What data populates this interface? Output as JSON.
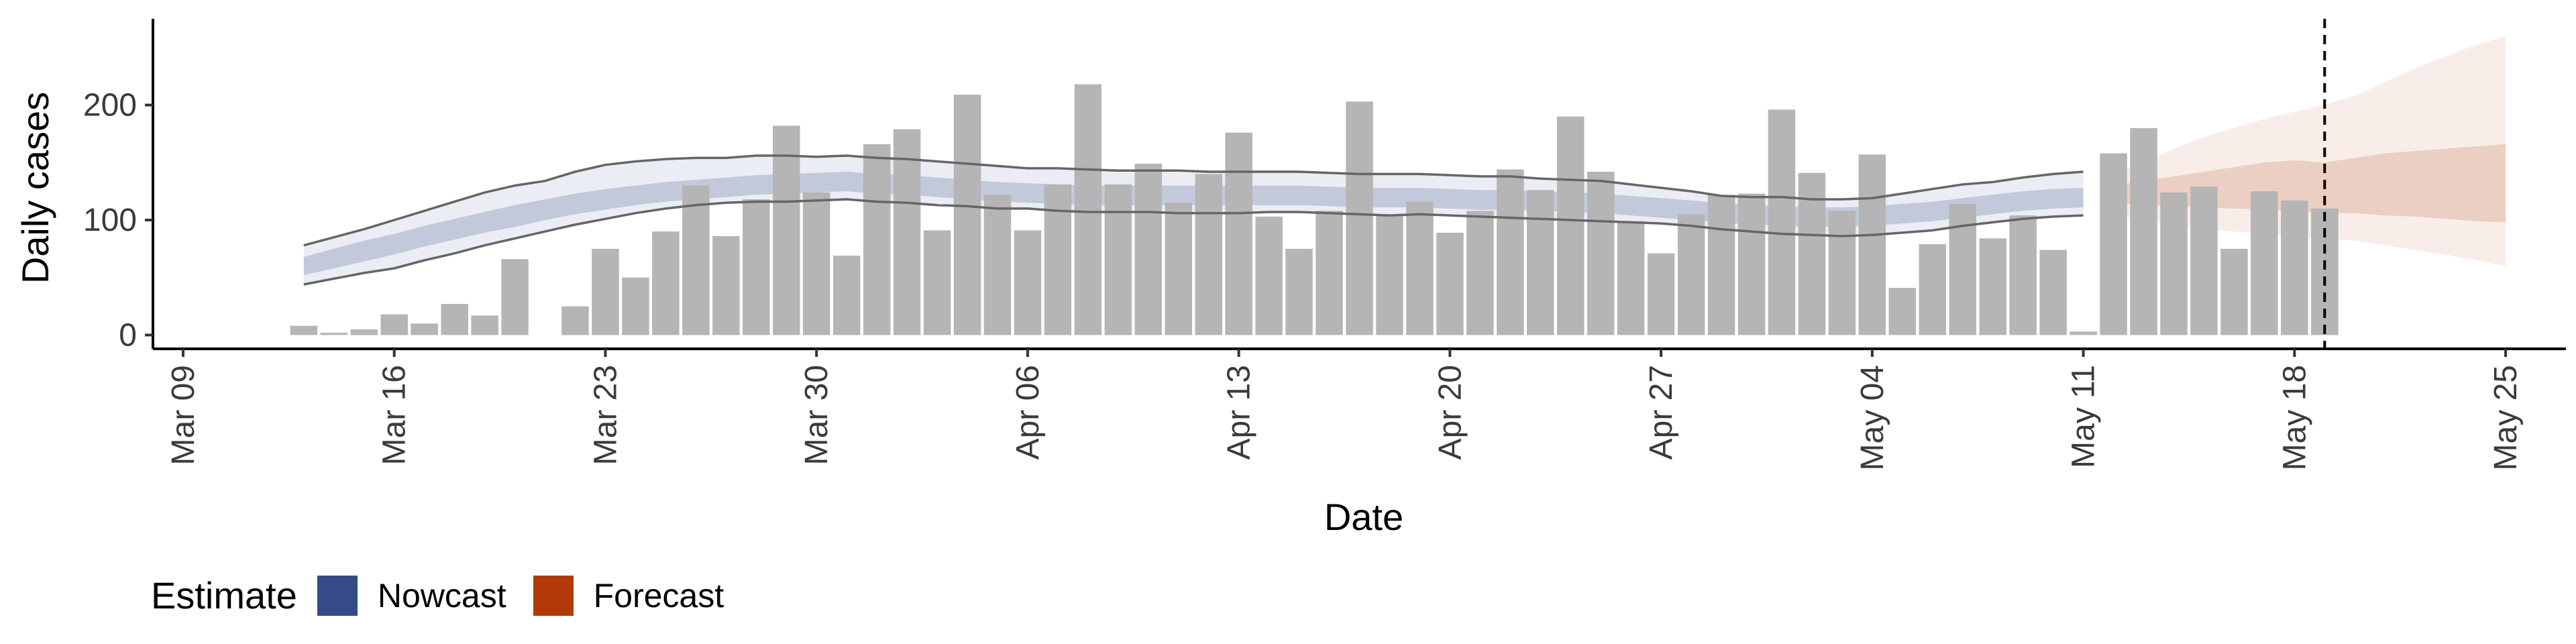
{
  "chart_data": {
    "type": "bar",
    "xlabel": "Date",
    "ylabel": "Daily cases",
    "ylim": [
      -12,
      275
    ],
    "y_ticks": [
      0,
      100,
      200
    ],
    "x_ticks": [
      "Mar 09",
      "Mar 16",
      "Mar 23",
      "Mar 30",
      "Apr 06",
      "Apr 13",
      "Apr 20",
      "Apr 27",
      "May 04",
      "May 11",
      "May 18",
      "May 25"
    ],
    "x_start_date": "2020-03-08",
    "x_end_date": "2020-05-27",
    "vline_date": "2020-05-19",
    "bars": {
      "start_date": "2020-03-13",
      "values": [
        8,
        2,
        5,
        18,
        10,
        27,
        17,
        66,
        0,
        25,
        75,
        50,
        90,
        130,
        86,
        118,
        182,
        124,
        69,
        166,
        179,
        91,
        209,
        122,
        91,
        131,
        218,
        131,
        149,
        115,
        140,
        176,
        103,
        75,
        108,
        203,
        104,
        116,
        89,
        108,
        144,
        126,
        190,
        142,
        99,
        71,
        105,
        122,
        123,
        196,
        141,
        108,
        157,
        41,
        79,
        114,
        84,
        104,
        74,
        3,
        158,
        180,
        124,
        129,
        75,
        125,
        117,
        110
      ],
      "color": "#b5b5b5"
    },
    "nowcast": {
      "start_date": "2020-03-13",
      "end_date": "2020-05-11",
      "median": [
        60,
        67,
        74,
        80,
        87,
        93,
        99,
        104,
        109,
        114,
        118,
        121,
        124,
        126,
        128,
        130,
        131,
        132,
        133,
        131,
        130,
        128,
        126,
        124,
        123,
        122,
        121,
        121,
        121,
        121,
        121,
        121,
        121,
        121,
        120,
        119,
        119,
        119,
        118,
        117,
        117,
        116,
        115,
        114,
        112,
        110,
        108,
        106,
        104,
        103,
        102,
        102,
        103,
        105,
        107,
        110,
        113,
        116,
        118,
        119
      ],
      "ci50_low": [
        52,
        58,
        64,
        70,
        77,
        83,
        89,
        94,
        100,
        105,
        109,
        113,
        116,
        118,
        120,
        122,
        123,
        124,
        125,
        123,
        122,
        120,
        118,
        116,
        115,
        114,
        113,
        113,
        113,
        113,
        113,
        113,
        113,
        113,
        112,
        111,
        111,
        111,
        110,
        109,
        109,
        108,
        107,
        106,
        104,
        102,
        100,
        98,
        96,
        95,
        94,
        94,
        95,
        97,
        99,
        102,
        105,
        108,
        110,
        111
      ],
      "ci50_high": [
        68,
        75,
        82,
        88,
        95,
        101,
        107,
        113,
        118,
        123,
        127,
        130,
        133,
        135,
        137,
        139,
        140,
        141,
        142,
        140,
        139,
        137,
        135,
        133,
        132,
        131,
        130,
        130,
        130,
        130,
        130,
        130,
        130,
        130,
        129,
        128,
        128,
        128,
        127,
        126,
        126,
        125,
        124,
        123,
        121,
        119,
        117,
        115,
        113,
        112,
        111,
        111,
        112,
        114,
        116,
        119,
        122,
        125,
        127,
        128
      ],
      "ci90_low": [
        44,
        49,
        54,
        58,
        65,
        71,
        78,
        84,
        90,
        96,
        101,
        106,
        110,
        113,
        115,
        116,
        116,
        117,
        118,
        116,
        115,
        113,
        112,
        110,
        110,
        108,
        107,
        107,
        107,
        106,
        106,
        106,
        107,
        107,
        106,
        105,
        104,
        105,
        104,
        103,
        102,
        101,
        100,
        99,
        98,
        97,
        95,
        92,
        90,
        88,
        87,
        86,
        87,
        89,
        91,
        95,
        98,
        101,
        103,
        104
      ],
      "ci90_high": [
        78,
        85,
        92,
        100,
        108,
        116,
        124,
        130,
        134,
        142,
        148,
        151,
        153,
        154,
        154,
        156,
        156,
        155,
        156,
        154,
        153,
        151,
        149,
        147,
        145,
        145,
        144,
        143,
        143,
        143,
        142,
        142,
        142,
        142,
        141,
        140,
        140,
        140,
        139,
        138,
        138,
        136,
        135,
        134,
        131,
        128,
        125,
        121,
        120,
        120,
        118,
        118,
        119,
        123,
        127,
        131,
        133,
        137,
        140,
        142
      ],
      "color": "#354B88"
    },
    "forecast": {
      "start_date": "2020-05-12",
      "end_date": "2020-05-25",
      "median": [
        122,
        124,
        126,
        128,
        130,
        132,
        132,
        130,
        132,
        134,
        134,
        132,
        132,
        132
      ],
      "ci50_low": [
        115,
        113,
        112,
        111,
        110,
        109,
        108,
        106,
        106,
        104,
        103,
        101,
        99,
        98
      ],
      "ci50_high": [
        130,
        134,
        138,
        142,
        146,
        150,
        152,
        150,
        154,
        158,
        160,
        162,
        164,
        166
      ],
      "ci90_low": [
        105,
        100,
        95,
        92,
        90,
        88,
        86,
        84,
        82,
        78,
        74,
        70,
        65,
        60
      ],
      "ci90_high": [
        140,
        150,
        162,
        172,
        180,
        188,
        194,
        200,
        208,
        220,
        232,
        242,
        252,
        260
      ],
      "color": "#B23A09"
    },
    "legend": {
      "title": "Estimate",
      "position": "bottom-left",
      "items": [
        {
          "label": "Nowcast",
          "color": "#354B88"
        },
        {
          "label": "Forecast",
          "color": "#B23A09"
        }
      ]
    }
  }
}
